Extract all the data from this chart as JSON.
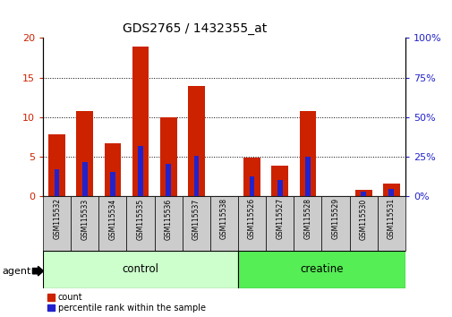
{
  "title": "GDS2765 / 1432355_at",
  "samples": [
    "GSM115532",
    "GSM115533",
    "GSM115534",
    "GSM115535",
    "GSM115536",
    "GSM115537",
    "GSM115538",
    "GSM115526",
    "GSM115527",
    "GSM115528",
    "GSM115529",
    "GSM115530",
    "GSM115531"
  ],
  "count_values": [
    7.9,
    10.8,
    6.7,
    18.9,
    10.0,
    13.9,
    0.05,
    4.9,
    3.9,
    10.8,
    0.05,
    0.8,
    1.6
  ],
  "percentile_values": [
    17.5,
    22.0,
    15.5,
    32.0,
    20.5,
    25.5,
    0.5,
    12.5,
    10.5,
    25.0,
    0.5,
    3.0,
    5.0
  ],
  "n_control": 7,
  "n_creatine": 6,
  "bar_color_red": "#cc2200",
  "bar_color_blue": "#2222cc",
  "ylim_left": [
    0,
    20
  ],
  "ylim_right": [
    0,
    100
  ],
  "yticks_left": [
    0,
    5,
    10,
    15,
    20
  ],
  "yticks_right": [
    0,
    25,
    50,
    75,
    100
  ],
  "control_color": "#ccffcc",
  "creatine_color": "#55ee55",
  "label_count": "count",
  "label_percentile": "percentile rank within the sample",
  "bar_width": 0.6,
  "grid_color": "black",
  "bg_color": "#f0f0f0",
  "sample_box_color": "#cccccc"
}
